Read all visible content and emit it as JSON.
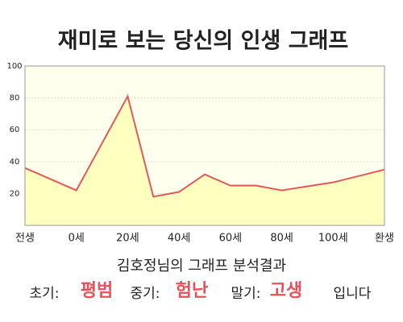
{
  "chart_data": {
    "type": "line",
    "title": "재미로 보는 당신의 인생 그래프",
    "x": [
      -20,
      0,
      20,
      30,
      40,
      50,
      60,
      70,
      80,
      100,
      120
    ],
    "values": [
      36,
      22,
      81,
      18,
      21,
      32,
      25,
      25,
      22,
      27,
      35
    ],
    "color": "#e05a5a",
    "area_color": "#ffffc0",
    "xlim": [
      -20,
      120
    ],
    "xticks": [
      {
        "value": -20,
        "label": "전생"
      },
      {
        "value": 0,
        "label": "0세"
      },
      {
        "value": 20,
        "label": "20세"
      },
      {
        "value": 40,
        "label": "40세"
      },
      {
        "value": 60,
        "label": "60세"
      },
      {
        "value": 80,
        "label": "80세"
      },
      {
        "value": 100,
        "label": "100세"
      },
      {
        "value": 120,
        "label": "환생"
      }
    ],
    "ylim": [
      0,
      100
    ],
    "yticks": [
      20,
      40,
      60,
      80,
      100
    ],
    "grid": true
  },
  "result": {
    "heading": "김호정님의 그래프 분석결과",
    "items": [
      {
        "label": "초기:",
        "value": "평범"
      },
      {
        "label": "중기:",
        "value": "험난"
      },
      {
        "label": "말기:",
        "value": "고생"
      }
    ],
    "suffix": "입니다"
  }
}
